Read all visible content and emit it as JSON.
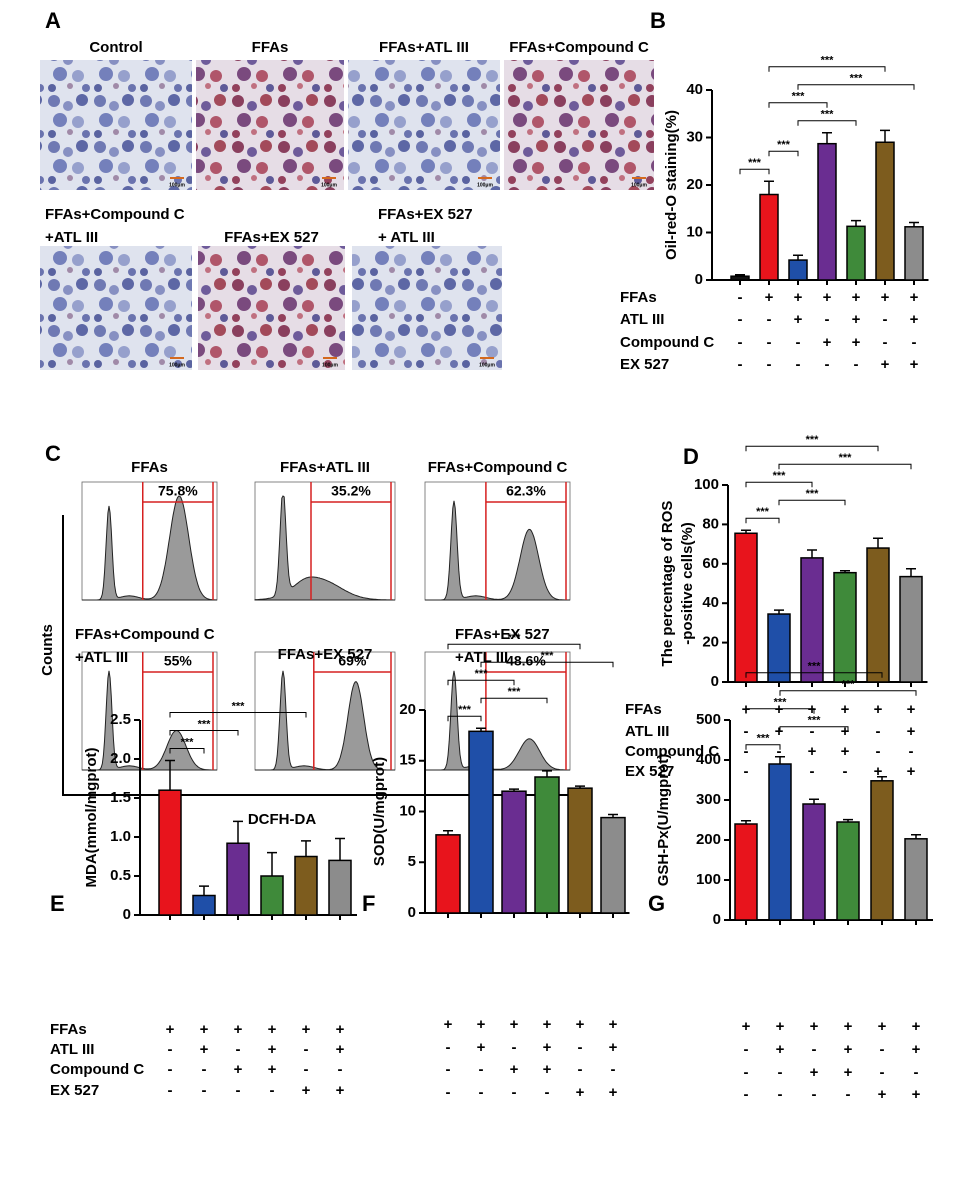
{
  "panel_a": {
    "letter": "A",
    "scale_bar": "100μm",
    "images": [
      {
        "lines": [
          "Control"
        ]
      },
      {
        "lines": [
          "FFAs"
        ]
      },
      {
        "lines": [
          "FFAs+ATL III"
        ]
      },
      {
        "lines": [
          "FFAs+Compound C"
        ]
      },
      {
        "lines": [
          "FFAs+Compound C",
          "+ATL III"
        ]
      },
      {
        "lines": [
          "FFAs+EX 527"
        ]
      },
      {
        "lines": [
          "FFAs+EX 527",
          "+ ATL III"
        ]
      }
    ]
  },
  "panel_c": {
    "letter": "C",
    "y_label": "Counts",
    "x_label": "DCFH-DA",
    "plots": [
      {
        "lines": [
          "FFAs"
        ],
        "gate": "75.8%"
      },
      {
        "lines": [
          "FFAs+ATL III"
        ],
        "gate": "35.2%"
      },
      {
        "lines": [
          "FFAs+Compound C"
        ],
        "gate": "62.3%"
      },
      {
        "lines": [
          "FFAs+Compound C",
          "+ATL III"
        ],
        "gate": "55%"
      },
      {
        "lines": [
          "FFAs+EX 527"
        ],
        "gate": "69%"
      },
      {
        "lines": [
          "FFAs+EX 527",
          "+ATL III"
        ],
        "gate": "48.6%"
      }
    ]
  },
  "chart_data": [
    {
      "type": "bar",
      "letter": "B",
      "y_label": [
        "Oil-red-O staining(%)"
      ],
      "values": [
        0.8,
        18,
        4.2,
        28.7,
        11.3,
        29,
        11.2
      ],
      "errors": [
        0.3,
        2.8,
        1,
        2.3,
        1.2,
        2.5,
        0.9
      ],
      "colors": [
        "#111111",
        "#e8141c",
        "#1f4fa8",
        "#6a2d91",
        "#3f8a3a",
        "#7d5c1e",
        "#8c8c8c"
      ],
      "ylim": [
        0,
        40
      ],
      "yticks": [
        0,
        10,
        20,
        30,
        40
      ],
      "brackets": [
        {
          "between": [
            0,
            1
          ],
          "label": "***"
        },
        {
          "between": [
            1,
            2
          ],
          "label": "***"
        },
        {
          "between": [
            2,
            4
          ],
          "label": "***"
        },
        {
          "between": [
            1,
            3
          ],
          "label": "***"
        },
        {
          "between": [
            2,
            6
          ],
          "label": "***"
        },
        {
          "between": [
            1,
            5
          ],
          "label": "***"
        }
      ],
      "conditions": {
        "row_labels": [
          "FFAs",
          "ATL III",
          "Compound C",
          "EX  527"
        ],
        "signs": [
          [
            "-",
            "+",
            "+",
            "+",
            "+",
            "+",
            "+"
          ],
          [
            "-",
            "-",
            "+",
            "-",
            "+",
            "-",
            "+"
          ],
          [
            "-",
            "-",
            "-",
            "+",
            "+",
            "-",
            "-"
          ],
          [
            "-",
            "-",
            "-",
            "-",
            "-",
            "+",
            "+"
          ]
        ]
      }
    },
    {
      "type": "bar",
      "letter": "D",
      "y_label": [
        "The percentage of ROS",
        "-positive cells(%)"
      ],
      "values": [
        75.5,
        34.5,
        63,
        55.5,
        68,
        53.5
      ],
      "errors": [
        1.5,
        2,
        4,
        1,
        5,
        4
      ],
      "colors": [
        "#e8141c",
        "#1f4fa8",
        "#6a2d91",
        "#3f8a3a",
        "#7d5c1e",
        "#8c8c8c"
      ],
      "ylim": [
        0,
        100
      ],
      "yticks": [
        0,
        20,
        40,
        60,
        80,
        100
      ],
      "brackets": [
        {
          "between": [
            0,
            1
          ],
          "label": "***"
        },
        {
          "between": [
            1,
            3
          ],
          "label": "***"
        },
        {
          "between": [
            0,
            2
          ],
          "label": "***"
        },
        {
          "between": [
            1,
            5
          ],
          "label": "***"
        },
        {
          "between": [
            0,
            4
          ],
          "label": "***"
        }
      ],
      "conditions": {
        "row_labels": [
          "FFAs",
          "ATL III",
          "Compound C",
          "EX  527"
        ],
        "signs": [
          [
            "+",
            "+",
            "+",
            "+",
            "+",
            "+"
          ],
          [
            "-",
            "+",
            "-",
            "+",
            "-",
            "+"
          ],
          [
            "-",
            "-",
            "+",
            "+",
            "-",
            "-"
          ],
          [
            "-",
            "-",
            "-",
            "-",
            "+",
            "+"
          ]
        ]
      }
    },
    {
      "type": "bar",
      "letter": "E",
      "y_label": [
        "MDA(mmol/mgprot)"
      ],
      "values": [
        1.6,
        0.25,
        0.92,
        0.5,
        0.75,
        0.7
      ],
      "errors": [
        0.38,
        0.12,
        0.28,
        0.3,
        0.2,
        0.28
      ],
      "colors": [
        "#e8141c",
        "#1f4fa8",
        "#6a2d91",
        "#3f8a3a",
        "#7d5c1e",
        "#8c8c8c"
      ],
      "ylim": [
        0,
        2.5
      ],
      "yticks": [
        0,
        0.5,
        {
          "value": 1,
          "label": "1.0"
        },
        1.5,
        {
          "value": 2,
          "label": "2.0"
        },
        2.5
      ],
      "brackets": [
        {
          "between": [
            0,
            1
          ],
          "label": "***"
        },
        {
          "between": [
            0,
            2
          ],
          "label": "***"
        },
        {
          "between": [
            0,
            4
          ],
          "label": "***"
        }
      ],
      "conditions": {
        "row_labels": [
          "FFAs",
          "ATL III",
          "Compound C",
          "EX  527"
        ],
        "signs": [
          [
            "+",
            "+",
            "+",
            "+",
            "+",
            "+"
          ],
          [
            "-",
            "+",
            "-",
            "+",
            "-",
            "+"
          ],
          [
            "-",
            "-",
            "+",
            "+",
            "-",
            "-"
          ],
          [
            "-",
            "-",
            "-",
            "-",
            "+",
            "+"
          ]
        ]
      }
    },
    {
      "type": "bar",
      "letter": "F",
      "y_label": [
        "SOD(U/mgprot)"
      ],
      "values": [
        7.7,
        17.9,
        12,
        13.4,
        12.3,
        9.4
      ],
      "errors": [
        0.4,
        0.3,
        0.2,
        0.6,
        0.2,
        0.3
      ],
      "colors": [
        "#e8141c",
        "#1f4fa8",
        "#6a2d91",
        "#3f8a3a",
        "#7d5c1e",
        "#8c8c8c"
      ],
      "ylim": [
        0,
        20
      ],
      "yticks": [
        0,
        5,
        10,
        15,
        20
      ],
      "brackets": [
        {
          "between": [
            0,
            1
          ],
          "label": "***"
        },
        {
          "between": [
            1,
            3
          ],
          "label": "***"
        },
        {
          "between": [
            0,
            2
          ],
          "label": "***"
        },
        {
          "between": [
            1,
            5
          ],
          "label": "***"
        },
        {
          "between": [
            0,
            4
          ],
          "label": "***"
        }
      ],
      "conditions": {
        "signs": [
          [
            "+",
            "+",
            "+",
            "+",
            "+",
            "+"
          ],
          [
            "-",
            "+",
            "-",
            "+",
            "-",
            "+"
          ],
          [
            "-",
            "-",
            "+",
            "+",
            "-",
            "-"
          ],
          [
            "-",
            "-",
            "-",
            "-",
            "+",
            "+"
          ]
        ]
      }
    },
    {
      "type": "bar",
      "letter": "G",
      "y_label": [
        "GSH-Px(U/mgprot)"
      ],
      "values": [
        240,
        390,
        290,
        245,
        348,
        203
      ],
      "errors": [
        8,
        18,
        12,
        6,
        10,
        10
      ],
      "colors": [
        "#e8141c",
        "#1f4fa8",
        "#6a2d91",
        "#3f8a3a",
        "#7d5c1e",
        "#8c8c8c"
      ],
      "ylim": [
        0,
        500
      ],
      "yticks": [
        0,
        100,
        200,
        300,
        400,
        500
      ],
      "brackets": [
        {
          "between": [
            0,
            1
          ],
          "label": "***"
        },
        {
          "between": [
            1,
            3
          ],
          "label": "***"
        },
        {
          "between": [
            0,
            2
          ],
          "label": "***"
        },
        {
          "between": [
            1,
            5
          ],
          "label": "***"
        },
        {
          "between": [
            0,
            4
          ],
          "label": "***"
        }
      ],
      "conditions": {
        "signs": [
          [
            "+",
            "+",
            "+",
            "+",
            "+",
            "+"
          ],
          [
            "-",
            "+",
            "-",
            "+",
            "-",
            "+"
          ],
          [
            "-",
            "-",
            "+",
            "+",
            "-",
            "-"
          ],
          [
            "-",
            "-",
            "-",
            "-",
            "+",
            "+"
          ]
        ]
      }
    }
  ]
}
